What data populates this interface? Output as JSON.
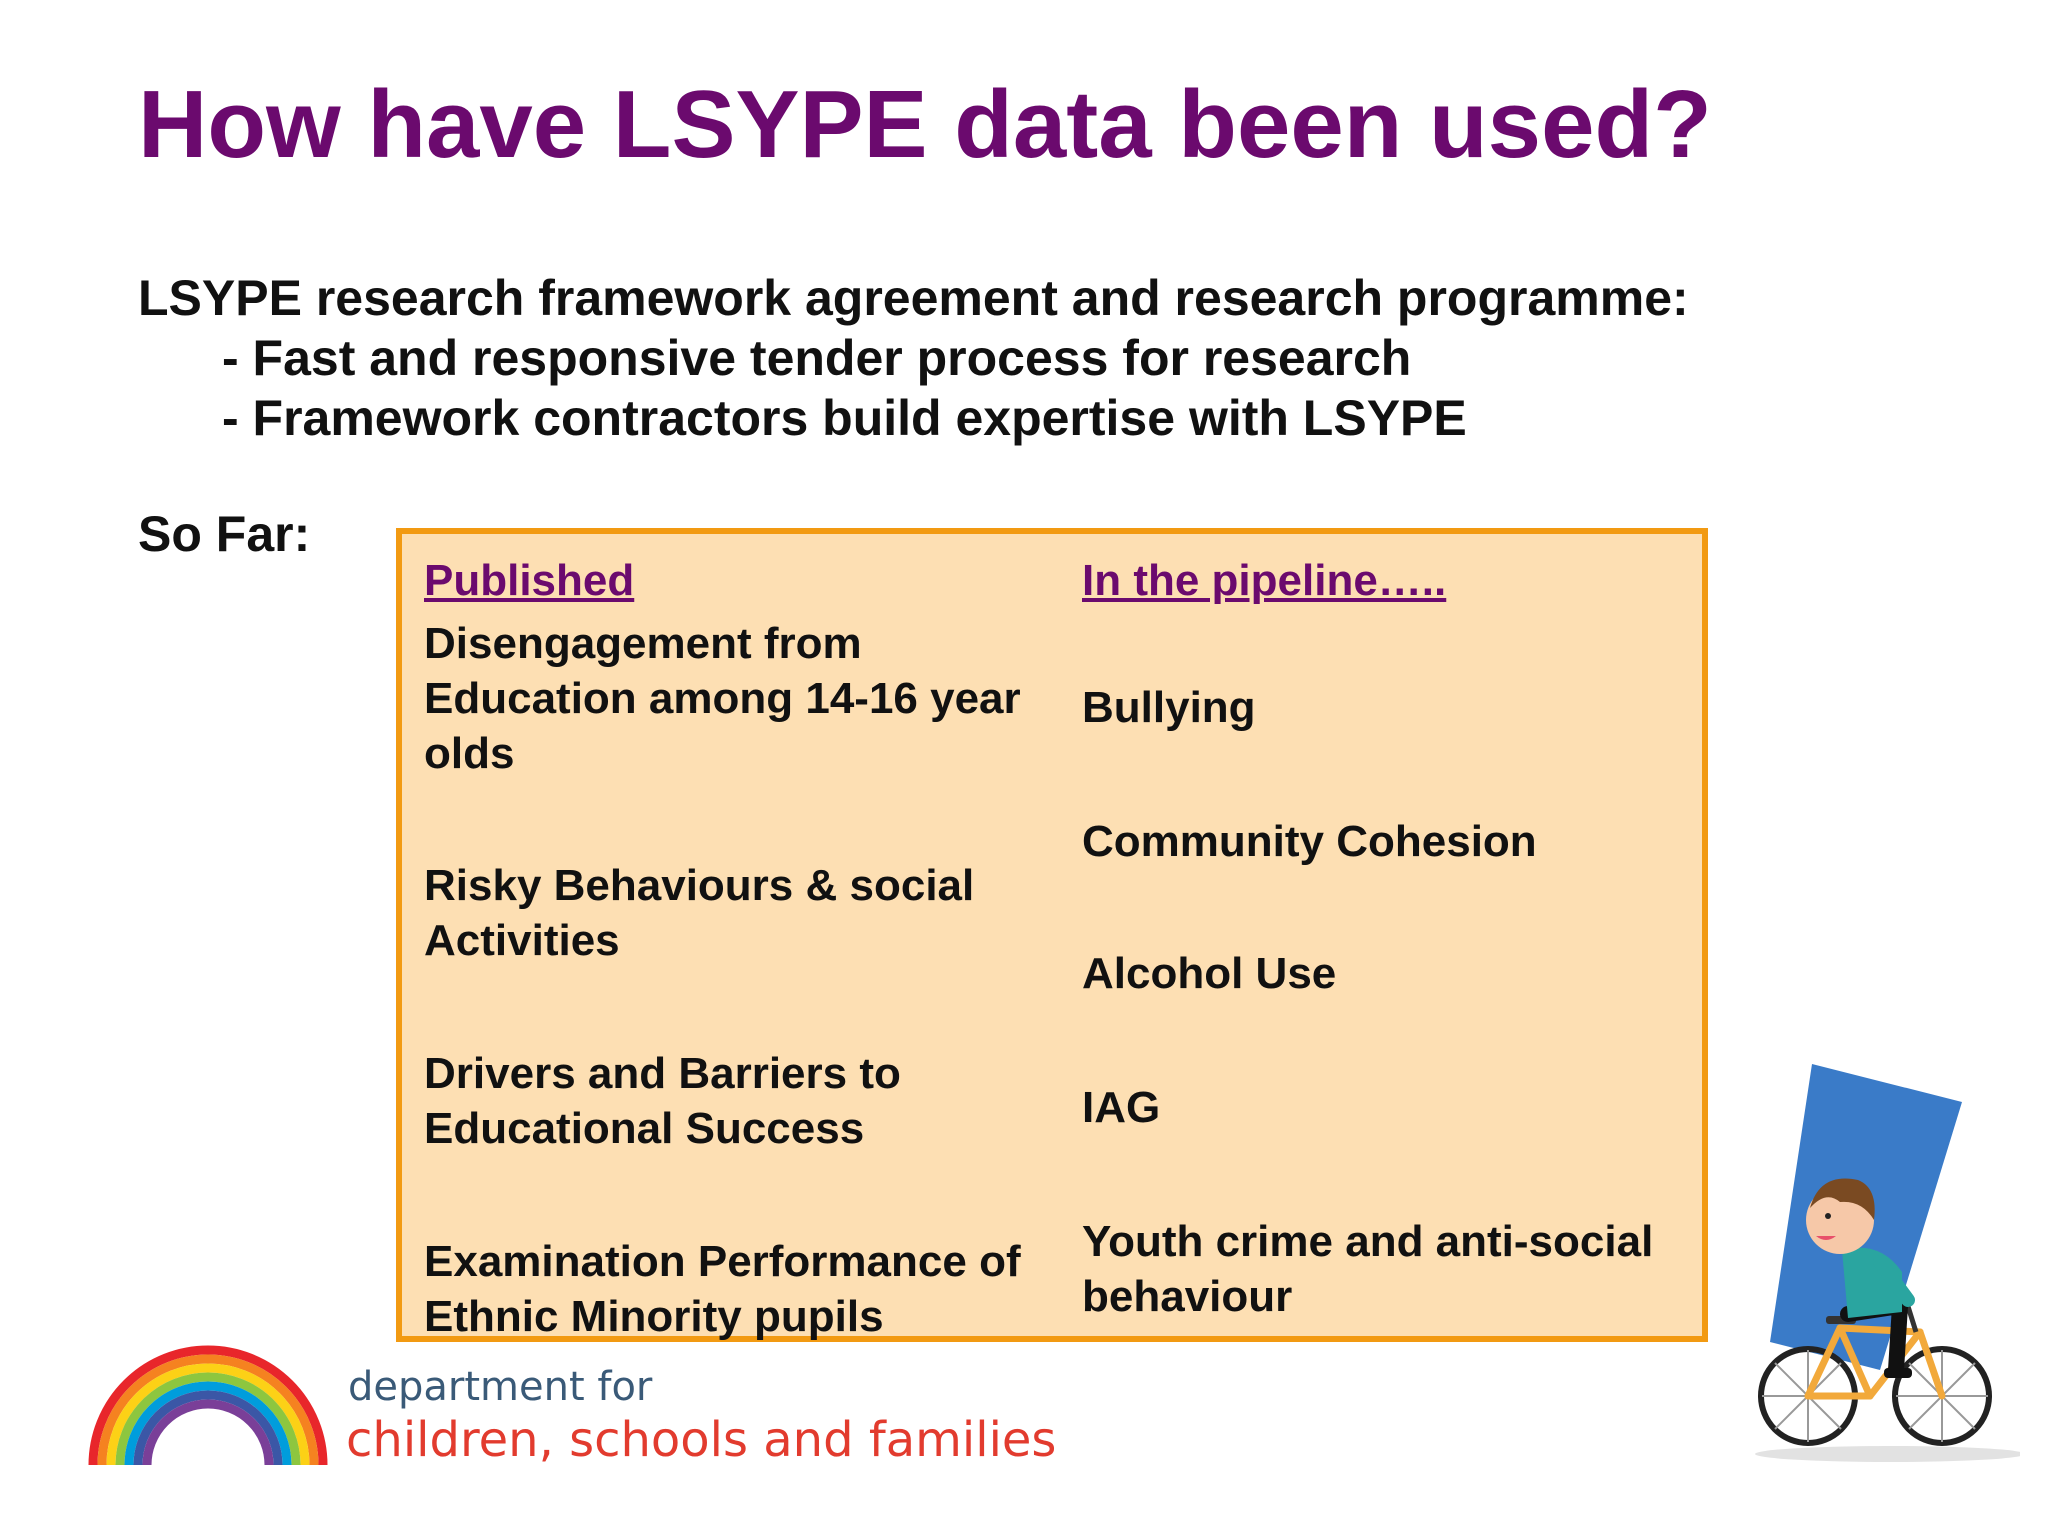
{
  "slide": {
    "title": "How have LSYPE data been used?",
    "intro": {
      "lead": "LSYPE research framework agreement and research programme:",
      "bullets": [
        "- Fast and responsive tender process for research",
        "- Framework contractors build expertise with LSYPE"
      ]
    },
    "so_far_label": "So Far:"
  },
  "panel": {
    "published_heading": "Published",
    "pipeline_heading": "In the pipeline…..",
    "published": [
      "Disengagement from Education among 14-16 year olds",
      "Risky Behaviours & social Activities",
      "Drivers and Barriers to Educational Success",
      "Examination Performance of Ethnic Minority pupils"
    ],
    "pipeline": [
      "Bullying",
      "Community Cohesion",
      "Alcohol Use",
      "IAG",
      "Youth crime and anti-social behaviour"
    ]
  },
  "branding": {
    "dept_line1": "department for",
    "dept_line2": "children, schools and families"
  },
  "colors": {
    "title": "#6b0a6e",
    "panel_fill": "#fddfb3",
    "panel_border": "#f29a12",
    "dept_blue": "#3a5a78",
    "dept_red": "#e23b2e"
  },
  "icons": [
    "rainbow-logo-icon",
    "cyclist-illustration-icon"
  ]
}
